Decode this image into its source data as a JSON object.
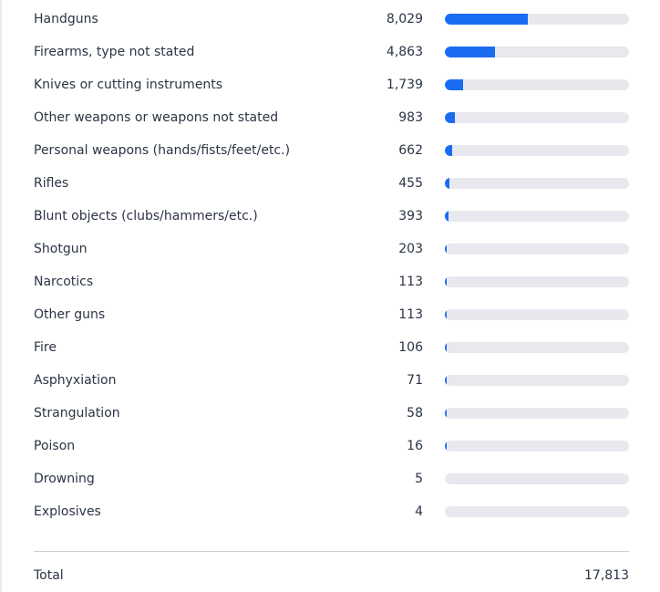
{
  "chart_data": {
    "type": "bar",
    "orientation": "horizontal",
    "categories": [
      "Handguns",
      "Firearms, type not stated",
      "Knives or cutting instruments",
      "Other weapons or weapons not stated",
      "Personal weapons (hands/fists/feet/etc.)",
      "Rifles",
      "Blunt objects (clubs/hammers/etc.)",
      "Shotgun",
      "Narcotics",
      "Other guns",
      "Fire",
      "Asphyxiation",
      "Strangulation",
      "Poison",
      "Drowning",
      "Explosives"
    ],
    "values": [
      8029,
      4863,
      1739,
      983,
      662,
      455,
      393,
      203,
      113,
      113,
      106,
      71,
      58,
      16,
      5,
      4
    ],
    "value_labels": [
      "8,029",
      "4,863",
      "1,739",
      "983",
      "662",
      "455",
      "393",
      "203",
      "113",
      "113",
      "106",
      "71",
      "58",
      "16",
      "5",
      "4"
    ],
    "xlim": [
      0,
      17813
    ],
    "grid": false,
    "bar_color": "#1a6cf0",
    "track_color": "#e7e9ee"
  },
  "total": {
    "label": "Total",
    "value": "17,813"
  }
}
